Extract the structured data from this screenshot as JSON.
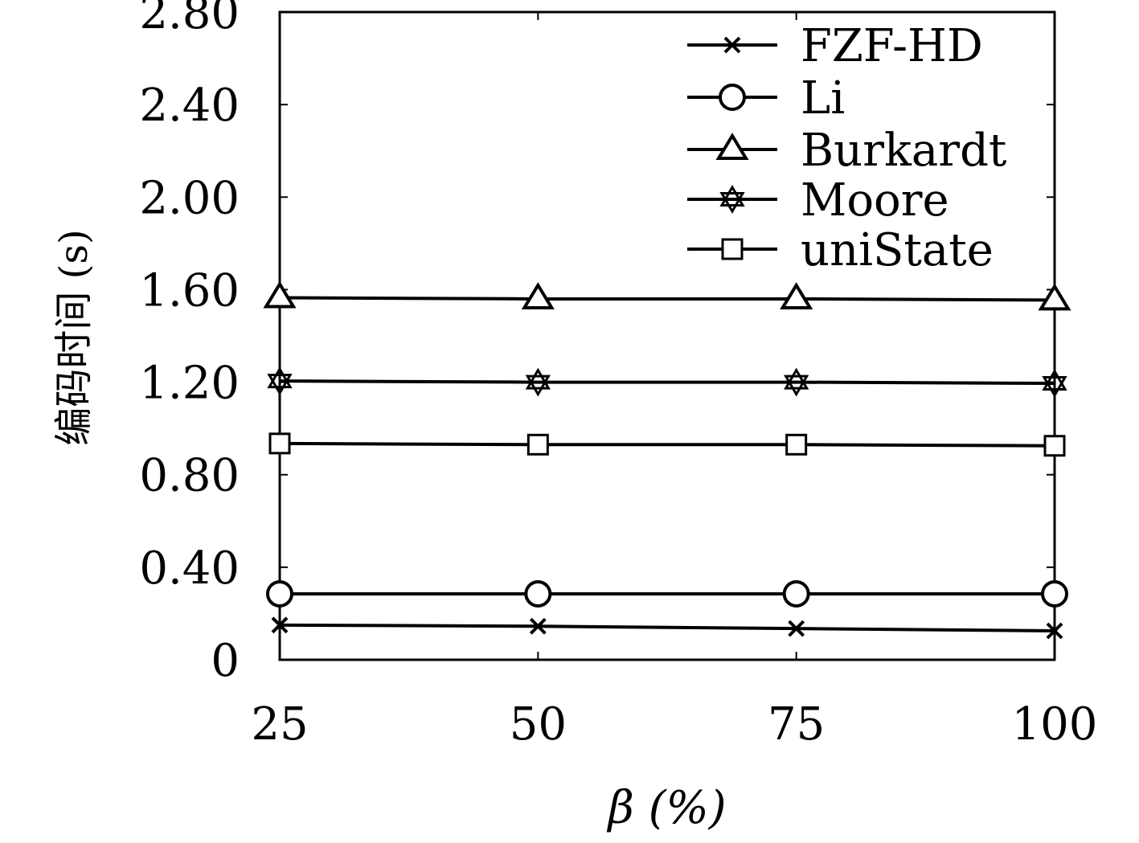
{
  "chart_data": {
    "type": "line",
    "title": "",
    "xlabel": "β (%)",
    "ylabel": "编码时间 (s)",
    "x": [
      25,
      50,
      75,
      100
    ],
    "x_tick_labels": [
      "25",
      "50",
      "75",
      "100"
    ],
    "ylim": [
      0,
      2.8
    ],
    "y_ticks": [
      0,
      0.4,
      0.8,
      1.2,
      1.6,
      2.0,
      2.4,
      2.8
    ],
    "y_tick_labels": [
      "0",
      "0.40",
      "0.80",
      "1.20",
      "1.60",
      "2.00",
      "2.40",
      "2.80"
    ],
    "grid": false,
    "legend_position": "top-right",
    "series": [
      {
        "name": "FZF-HD",
        "marker": "x",
        "values": [
          0.15,
          0.145,
          0.135,
          0.125
        ]
      },
      {
        "name": "Li",
        "marker": "circle",
        "values": [
          0.285,
          0.285,
          0.285,
          0.285
        ]
      },
      {
        "name": "Burkardt",
        "marker": "triangle",
        "values": [
          1.565,
          1.56,
          1.56,
          1.555
        ]
      },
      {
        "name": "Moore",
        "marker": "star",
        "values": [
          1.205,
          1.2,
          1.2,
          1.195
        ]
      },
      {
        "name": "uniState",
        "marker": "square",
        "values": [
          0.935,
          0.93,
          0.93,
          0.925
        ]
      }
    ]
  }
}
